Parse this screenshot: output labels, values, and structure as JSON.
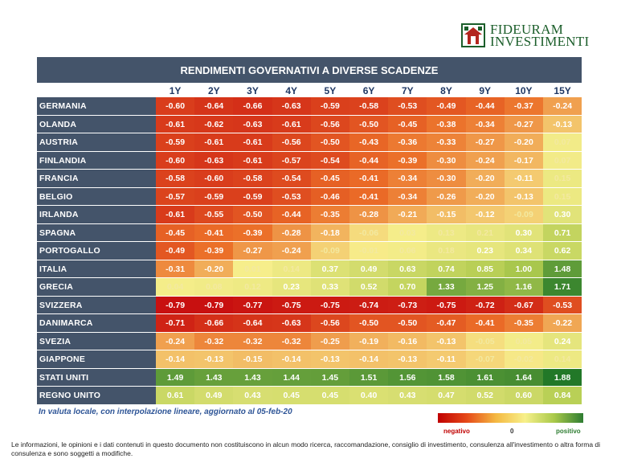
{
  "brand": {
    "line1": "FIDEURAM",
    "line2": "INVESTIMENTI"
  },
  "colors": {
    "header_bg": "#44546a",
    "brand_green": "#1b5e2a",
    "header_text": "#1f3864"
  },
  "chart_data": {
    "type": "heatmap",
    "title": "RENDIMENTI GOVERNATIVI A DIVERSE SCADENZE",
    "columns": [
      "1Y",
      "2Y",
      "3Y",
      "4Y",
      "5Y",
      "6Y",
      "7Y",
      "8Y",
      "9Y",
      "10Y",
      "15Y"
    ],
    "rows": [
      "GERMANIA",
      "OLANDA",
      "AUSTRIA",
      "FINLANDIA",
      "FRANCIA",
      "BELGIO",
      "IRLANDA",
      "SPAGNA",
      "PORTOGALLO",
      "ITALIA",
      "GRECIA",
      "SVIZZERA",
      "DANIMARCA",
      "SVEZIA",
      "GIAPPONE",
      "STATI UNITI",
      "REGNO UNITO"
    ],
    "values": [
      [
        -0.6,
        -0.64,
        -0.66,
        -0.63,
        -0.59,
        -0.58,
        -0.53,
        -0.49,
        -0.44,
        -0.37,
        -0.24
      ],
      [
        -0.61,
        -0.62,
        -0.63,
        -0.61,
        -0.56,
        -0.5,
        -0.45,
        -0.38,
        -0.34,
        -0.27,
        -0.13
      ],
      [
        -0.59,
        -0.61,
        -0.61,
        -0.56,
        -0.5,
        -0.43,
        -0.36,
        -0.33,
        -0.27,
        -0.2,
        0.07
      ],
      [
        -0.6,
        -0.63,
        -0.61,
        -0.57,
        -0.54,
        -0.44,
        -0.39,
        -0.3,
        -0.24,
        -0.17,
        0.07
      ],
      [
        -0.58,
        -0.6,
        -0.58,
        -0.54,
        -0.45,
        -0.41,
        -0.34,
        -0.3,
        -0.2,
        -0.11,
        0.15
      ],
      [
        -0.57,
        -0.59,
        -0.59,
        -0.53,
        -0.46,
        -0.41,
        -0.34,
        -0.26,
        -0.2,
        -0.13,
        0.15
      ],
      [
        -0.61,
        -0.55,
        -0.5,
        -0.44,
        -0.35,
        -0.28,
        -0.21,
        -0.15,
        -0.12,
        -0.09,
        0.3
      ],
      [
        -0.45,
        -0.41,
        -0.39,
        -0.28,
        -0.18,
        -0.06,
        0.03,
        0.13,
        0.21,
        0.3,
        0.71
      ],
      [
        -0.49,
        -0.39,
        -0.27,
        -0.24,
        -0.09,
        -0.01,
        0.06,
        0.18,
        0.23,
        0.34,
        0.62
      ],
      [
        -0.31,
        -0.2,
        0.01,
        0.14,
        0.37,
        0.49,
        0.63,
        0.74,
        0.85,
        1.0,
        1.48
      ],
      [
        0.04,
        0.08,
        0.12,
        0.23,
        0.33,
        0.52,
        0.7,
        1.33,
        1.25,
        1.16,
        1.71
      ],
      [
        -0.79,
        -0.79,
        -0.77,
        -0.75,
        -0.75,
        -0.74,
        -0.73,
        -0.75,
        -0.72,
        -0.67,
        -0.53
      ],
      [
        -0.71,
        -0.66,
        -0.64,
        -0.63,
        -0.56,
        -0.5,
        -0.5,
        -0.47,
        -0.41,
        -0.35,
        -0.22
      ],
      [
        -0.24,
        -0.32,
        -0.32,
        -0.32,
        -0.25,
        -0.19,
        -0.16,
        -0.13,
        -0.05,
        0.05,
        0.24
      ],
      [
        -0.14,
        -0.13,
        -0.15,
        -0.14,
        -0.13,
        -0.14,
        -0.13,
        -0.11,
        -0.07,
        -0.02,
        0.14
      ],
      [
        1.49,
        1.43,
        1.43,
        1.44,
        1.45,
        1.51,
        1.56,
        1.58,
        1.61,
        1.64,
        1.88
      ],
      [
        0.61,
        0.49,
        0.43,
        0.45,
        0.45,
        0.4,
        0.43,
        0.47,
        0.52,
        0.6,
        0.84
      ]
    ],
    "scale": {
      "min": -0.79,
      "mid": 0,
      "max": 1.88
    },
    "legend": {
      "negative": "negativo",
      "zero": "0",
      "positive": "positivo"
    }
  },
  "note": "In valuta locale, con interpolazione lineare, aggiornato al 05-feb-20",
  "disclaimer": "Le informazioni, le opinioni e i dati contenuti in questo documento non costituiscono in alcun modo ricerca, raccomandazione, consiglio di investimento, consulenza all'investimento o altra forma di consulenza e sono soggetti a modifiche."
}
